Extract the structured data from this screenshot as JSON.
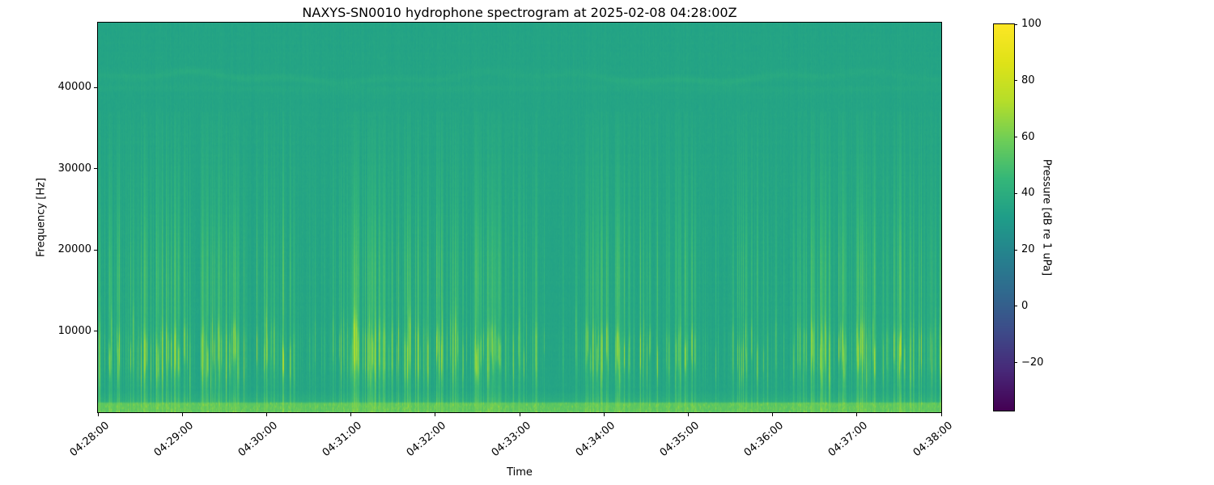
{
  "chart_data": {
    "type": "heatmap",
    "subtype": "spectrogram",
    "title": "NAXYS-SN0010 hydrophone spectrogram at 2025-02-08 04:28:00Z",
    "xlabel": "Time",
    "ylabel": "Frequency [Hz]",
    "x_tick_labels": [
      "04:28:00",
      "04:29:00",
      "04:30:00",
      "04:31:00",
      "04:32:00",
      "04:33:00",
      "04:34:00",
      "04:35:00",
      "04:36:00",
      "04:37:00",
      "04:38:00"
    ],
    "x_range_seconds": [
      0,
      600
    ],
    "y_tick_labels": [
      "10000",
      "20000",
      "30000",
      "40000"
    ],
    "y_range_hz": [
      0,
      48000
    ],
    "colorbar": {
      "label": "Pressure [dB re 1 uPa]",
      "tick_labels": [
        "100",
        "80",
        "60",
        "40",
        "20",
        "0",
        "−20"
      ],
      "vmin": -37,
      "vmax": 100,
      "colormap": "viridis",
      "top_color": "#fde725",
      "bottom_color": "#440154"
    },
    "noise_floor_db": 35,
    "background_color": "#23a585",
    "features": {
      "broadband_bursts": {
        "peak_band_hz": [
          5000,
          10000
        ],
        "peak_level_db": 70,
        "visible_up_to_hz": 36000,
        "streak_color": "#9fd93b"
      },
      "low_freq_band": {
        "band_hz": [
          0,
          1100
        ],
        "level_db": 56
      },
      "tonal_lines_hz": [
        39900,
        41300
      ],
      "tonal_line_boost_db": 2.5
    },
    "burst_clusters": [
      {
        "t": 10,
        "w": 14,
        "s": 0.8
      },
      {
        "t": 40,
        "w": 16,
        "s": 0.9
      },
      {
        "t": 70,
        "w": 12,
        "s": 0.7
      },
      {
        "t": 100,
        "w": 14,
        "s": 0.85
      },
      {
        "t": 130,
        "w": 10,
        "s": 0.75
      },
      {
        "t": 185,
        "w": 14,
        "s": 0.85
      },
      {
        "t": 215,
        "w": 12,
        "s": 0.8
      },
      {
        "t": 245,
        "w": 14,
        "s": 0.9
      },
      {
        "t": 280,
        "w": 12,
        "s": 0.75
      },
      {
        "t": 305,
        "w": 10,
        "s": 0.7
      },
      {
        "t": 360,
        "w": 12,
        "s": 0.8
      },
      {
        "t": 390,
        "w": 14,
        "s": 0.85
      },
      {
        "t": 415,
        "w": 10,
        "s": 0.75
      },
      {
        "t": 465,
        "w": 10,
        "s": 0.6
      },
      {
        "t": 510,
        "w": 12,
        "s": 0.8
      },
      {
        "t": 540,
        "w": 14,
        "s": 0.85
      },
      {
        "t": 570,
        "w": 16,
        "s": 0.95
      },
      {
        "t": 592,
        "w": 10,
        "s": 0.9
      }
    ],
    "seed": 1234
  }
}
